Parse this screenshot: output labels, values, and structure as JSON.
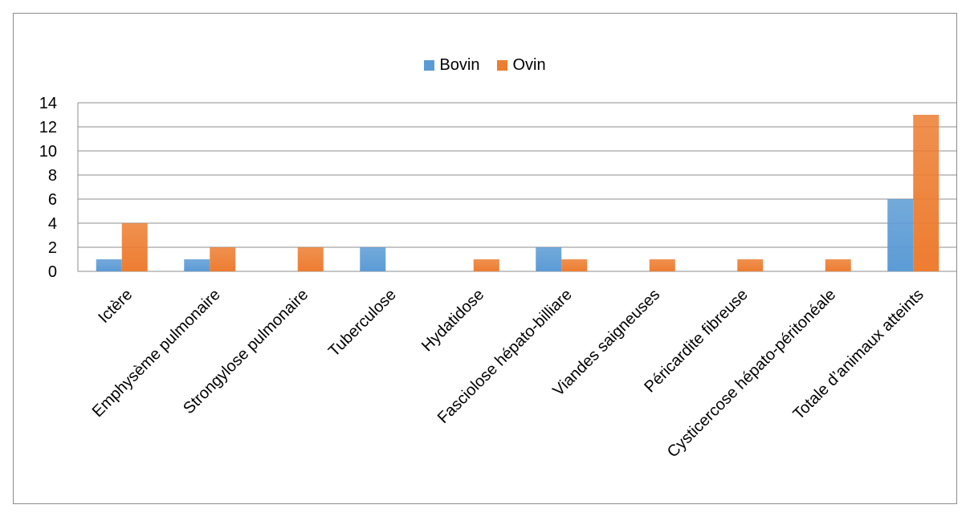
{
  "chart_data": {
    "type": "bar",
    "categories": [
      "Ictère",
      "Emphysème pulmonaire",
      "Strongylose pulmonaire",
      "Tuberculose",
      "Hydatidose",
      "Fasciolose hépato-billiare",
      "Viandes saigneuses",
      "Péricardite fibreuse",
      "Cysticercose hépato-péritonéale",
      "Totale d’animaux atteints"
    ],
    "series": [
      {
        "name": "Bovin",
        "color": "#5b9bd5",
        "values": [
          1,
          1,
          0,
          2,
          0,
          2,
          0,
          0,
          0,
          6
        ]
      },
      {
        "name": "Ovin",
        "color": "#ed7d31",
        "values": [
          4,
          2,
          2,
          0,
          1,
          1,
          1,
          1,
          1,
          13
        ]
      }
    ],
    "ylim": [
      0,
      14
    ],
    "yticks": [
      0,
      2,
      4,
      6,
      8,
      10,
      12,
      14
    ],
    "grid": true,
    "legend_position": "top-center"
  }
}
